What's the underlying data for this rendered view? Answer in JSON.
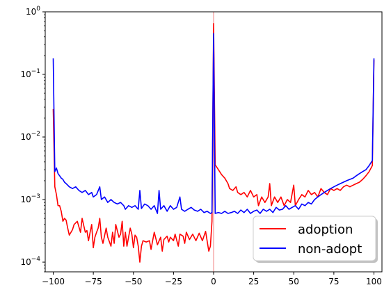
{
  "chart_data": {
    "type": "line",
    "yscale": "log",
    "xlim": [
      -105,
      105
    ],
    "ylim": [
      7e-05,
      1
    ],
    "grid": false,
    "legend_position": "lower-right",
    "vline_x": 0,
    "x_ticks": [
      {
        "value": -100,
        "label": "−100"
      },
      {
        "value": -75,
        "label": "−75"
      },
      {
        "value": -50,
        "label": "−50"
      },
      {
        "value": -25,
        "label": "−25"
      },
      {
        "value": 0,
        "label": "0"
      },
      {
        "value": 25,
        "label": "25"
      },
      {
        "value": 50,
        "label": "50"
      },
      {
        "value": 75,
        "label": "75"
      },
      {
        "value": 100,
        "label": "100"
      }
    ],
    "y_ticks": [
      {
        "exp": -4,
        "base": "10",
        "sup": "−4"
      },
      {
        "exp": -3,
        "base": "10",
        "sup": "−3"
      },
      {
        "exp": -2,
        "base": "10",
        "sup": "−2"
      },
      {
        "exp": -1,
        "base": "10",
        "sup": "−1"
      },
      {
        "exp": 0,
        "base": "10",
        "sup": "0"
      }
    ],
    "series": [
      {
        "name": "adoption",
        "color": "#ff0000",
        "points": [
          [
            -100,
            0.028
          ],
          [
            -99,
            0.0016
          ],
          [
            -98,
            0.0012
          ],
          [
            -97,
            0.0008
          ],
          [
            -96,
            0.0008
          ],
          [
            -95,
            0.00065
          ],
          [
            -94,
            0.00045
          ],
          [
            -93,
            0.0005
          ],
          [
            -92,
            0.00047
          ],
          [
            -91,
            0.00035
          ],
          [
            -90,
            0.00027
          ],
          [
            -88,
            0.00033
          ],
          [
            -87,
            0.0004
          ],
          [
            -85,
            0.00045
          ],
          [
            -83,
            0.0003
          ],
          [
            -82,
            0.0005
          ],
          [
            -80,
            0.0003
          ],
          [
            -79,
            0.00032
          ],
          [
            -78,
            0.00022
          ],
          [
            -77,
            0.0003
          ],
          [
            -76,
            0.0004
          ],
          [
            -75,
            0.00017
          ],
          [
            -74,
            0.00025
          ],
          [
            -73,
            0.0003
          ],
          [
            -72,
            0.00035
          ],
          [
            -71,
            0.0005
          ],
          [
            -70,
            0.00025
          ],
          [
            -69,
            0.0002
          ],
          [
            -67,
            0.00035
          ],
          [
            -66,
            0.00025
          ],
          [
            -64,
            0.00018
          ],
          [
            -63,
            0.0003
          ],
          [
            -62,
            0.0002
          ],
          [
            -61,
            0.0004
          ],
          [
            -59,
            0.00025
          ],
          [
            -58,
            0.00028
          ],
          [
            -57,
            0.00045
          ],
          [
            -56,
            0.00018
          ],
          [
            -55,
            0.0003
          ],
          [
            -54,
            0.00018
          ],
          [
            -53,
            0.00025
          ],
          [
            -52,
            0.00035
          ],
          [
            -51,
            0.00028
          ],
          [
            -50,
            0.00017
          ],
          [
            -49,
            0.00027
          ],
          [
            -48,
            0.00025
          ],
          [
            -47,
            0.00018
          ],
          [
            -46,
            0.0001
          ],
          [
            -45,
            0.00018
          ],
          [
            -44,
            0.00022
          ],
          [
            -42,
            0.00021
          ],
          [
            -40,
            0.00022
          ],
          [
            -39,
            0.00016
          ],
          [
            -38,
            0.00022
          ],
          [
            -37,
            0.0003
          ],
          [
            -35,
            0.00019
          ],
          [
            -33,
            0.00025
          ],
          [
            -32,
            0.00015
          ],
          [
            -31,
            0.00023
          ],
          [
            -29,
            0.00026
          ],
          [
            -28,
            0.00021
          ],
          [
            -27,
            0.00025
          ],
          [
            -25,
            0.00022
          ],
          [
            -24,
            0.00028
          ],
          [
            -22,
            0.00018
          ],
          [
            -21,
            0.00028
          ],
          [
            -19,
            0.00026
          ],
          [
            -18,
            0.0002
          ],
          [
            -17,
            0.0003
          ],
          [
            -15,
            0.00023
          ],
          [
            -13,
            0.00028
          ],
          [
            -11,
            0.00022
          ],
          [
            -9,
            0.00029
          ],
          [
            -7,
            0.00022
          ],
          [
            -5,
            0.00031
          ],
          [
            -3,
            0.00015
          ],
          [
            -2,
            0.00018
          ],
          [
            -1,
            0.00045
          ],
          [
            0,
            0.65
          ],
          [
            1,
            0.0036
          ],
          [
            3,
            0.003
          ],
          [
            5,
            0.0025
          ],
          [
            7,
            0.0022
          ],
          [
            9,
            0.0018
          ],
          [
            10,
            0.0015
          ],
          [
            12,
            0.0014
          ],
          [
            14,
            0.0016
          ],
          [
            15,
            0.0013
          ],
          [
            17,
            0.0012
          ],
          [
            19,
            0.0013
          ],
          [
            21,
            0.0011
          ],
          [
            23,
            0.0014
          ],
          [
            25,
            0.0011
          ],
          [
            27,
            0.0012
          ],
          [
            28,
            0.0008
          ],
          [
            30,
            0.0011
          ],
          [
            32,
            0.0009
          ],
          [
            34,
            0.0011
          ],
          [
            35,
            0.0018
          ],
          [
            36,
            0.0008
          ],
          [
            38,
            0.0011
          ],
          [
            40,
            0.0009
          ],
          [
            42,
            0.0011
          ],
          [
            44,
            0.0008
          ],
          [
            46,
            0.001
          ],
          [
            48,
            0.0009
          ],
          [
            50,
            0.0017
          ],
          [
            51,
            0.0008
          ],
          [
            53,
            0.001
          ],
          [
            55,
            0.0012
          ],
          [
            57,
            0.0011
          ],
          [
            59,
            0.0014
          ],
          [
            61,
            0.0012
          ],
          [
            63,
            0.0013
          ],
          [
            65,
            0.0011
          ],
          [
            67,
            0.0015
          ],
          [
            69,
            0.0013
          ],
          [
            71,
            0.0012
          ],
          [
            73,
            0.0015
          ],
          [
            75,
            0.0014
          ],
          [
            77,
            0.0015
          ],
          [
            79,
            0.0014
          ],
          [
            81,
            0.0016
          ],
          [
            83,
            0.0017
          ],
          [
            85,
            0.0016
          ],
          [
            87,
            0.0017
          ],
          [
            89,
            0.0018
          ],
          [
            91,
            0.0019
          ],
          [
            93,
            0.0021
          ],
          [
            95,
            0.0024
          ],
          [
            97,
            0.0028
          ],
          [
            99,
            0.0035
          ],
          [
            100,
            0.17
          ]
        ]
      },
      {
        "name": "non-adopt",
        "color": "#0000ff",
        "points": [
          [
            -100,
            0.18
          ],
          [
            -99,
            0.0028
          ],
          [
            -98,
            0.0032
          ],
          [
            -97,
            0.0026
          ],
          [
            -96,
            0.0024
          ],
          [
            -95,
            0.0022
          ],
          [
            -94,
            0.0021
          ],
          [
            -93,
            0.0019
          ],
          [
            -92,
            0.0018
          ],
          [
            -91,
            0.0017
          ],
          [
            -90,
            0.0016
          ],
          [
            -88,
            0.0015
          ],
          [
            -86,
            0.0016
          ],
          [
            -84,
            0.0014
          ],
          [
            -82,
            0.0013
          ],
          [
            -80,
            0.0014
          ],
          [
            -78,
            0.0012
          ],
          [
            -76,
            0.0013
          ],
          [
            -75,
            0.0011
          ],
          [
            -73,
            0.0012
          ],
          [
            -71,
            0.0016
          ],
          [
            -70,
            0.001
          ],
          [
            -68,
            0.0011
          ],
          [
            -66,
            0.0009
          ],
          [
            -64,
            0.001
          ],
          [
            -62,
            0.0009
          ],
          [
            -60,
            0.00085
          ],
          [
            -58,
            0.0009
          ],
          [
            -56,
            0.0008
          ],
          [
            -55,
            0.0007
          ],
          [
            -53,
            0.0008
          ],
          [
            -51,
            0.00075
          ],
          [
            -49,
            0.0008
          ],
          [
            -47,
            0.0007
          ],
          [
            -46,
            0.0014
          ],
          [
            -45,
            0.00072
          ],
          [
            -43,
            0.00085
          ],
          [
            -41,
            0.0008
          ],
          [
            -39,
            0.0007
          ],
          [
            -37,
            0.0008
          ],
          [
            -35,
            0.0006
          ],
          [
            -34,
            0.0014
          ],
          [
            -33,
            0.0007
          ],
          [
            -31,
            0.0008
          ],
          [
            -29,
            0.00065
          ],
          [
            -27,
            0.0008
          ],
          [
            -25,
            0.0007
          ],
          [
            -23,
            0.00075
          ],
          [
            -21,
            0.0011
          ],
          [
            -20,
            0.0007
          ],
          [
            -18,
            0.00065
          ],
          [
            -16,
            0.0007
          ],
          [
            -14,
            0.00075
          ],
          [
            -12,
            0.00068
          ],
          [
            -10,
            0.00065
          ],
          [
            -8,
            0.0007
          ],
          [
            -6,
            0.00062
          ],
          [
            -4,
            0.00065
          ],
          [
            -2,
            0.0006
          ],
          [
            -1,
            0.00062
          ],
          [
            0,
            0.45
          ],
          [
            1,
            0.0006
          ],
          [
            3,
            0.00062
          ],
          [
            5,
            0.0006
          ],
          [
            7,
            0.00065
          ],
          [
            9,
            0.0006
          ],
          [
            11,
            0.00062
          ],
          [
            13,
            0.00065
          ],
          [
            15,
            0.0006
          ],
          [
            17,
            0.00068
          ],
          [
            19,
            0.00062
          ],
          [
            21,
            0.0007
          ],
          [
            23,
            0.0006
          ],
          [
            25,
            0.00065
          ],
          [
            27,
            0.00068
          ],
          [
            29,
            0.0006
          ],
          [
            31,
            0.0007
          ],
          [
            33,
            0.00065
          ],
          [
            35,
            0.0007
          ],
          [
            37,
            0.00062
          ],
          [
            39,
            0.00075
          ],
          [
            41,
            0.00068
          ],
          [
            43,
            0.0007
          ],
          [
            45,
            0.0008
          ],
          [
            47,
            0.0007
          ],
          [
            49,
            0.00075
          ],
          [
            51,
            0.0008
          ],
          [
            53,
            0.0007
          ],
          [
            55,
            0.00085
          ],
          [
            57,
            0.0008
          ],
          [
            59,
            0.0009
          ],
          [
            61,
            0.00085
          ],
          [
            63,
            0.001
          ],
          [
            65,
            0.0011
          ],
          [
            67,
            0.0012
          ],
          [
            69,
            0.0013
          ],
          [
            71,
            0.0014
          ],
          [
            73,
            0.0015
          ],
          [
            75,
            0.0016
          ],
          [
            77,
            0.0017
          ],
          [
            79,
            0.0018
          ],
          [
            81,
            0.0019
          ],
          [
            83,
            0.002
          ],
          [
            85,
            0.0021
          ],
          [
            87,
            0.0022
          ],
          [
            89,
            0.0024
          ],
          [
            91,
            0.0026
          ],
          [
            93,
            0.0028
          ],
          [
            95,
            0.003
          ],
          [
            97,
            0.0035
          ],
          [
            99,
            0.0042
          ],
          [
            100,
            0.18
          ]
        ]
      }
    ]
  }
}
